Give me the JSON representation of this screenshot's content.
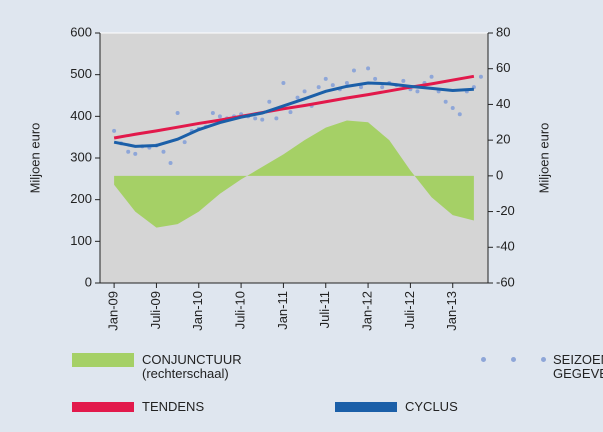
{
  "chart_data": {
    "type": "line",
    "ylabel": "Miljoen euro",
    "y2label": "Miljoen euro",
    "xlim": [
      "2008-11",
      "2013-06"
    ],
    "xticks": [
      {
        "value": "2009-01",
        "label": "Jan-09"
      },
      {
        "value": "2009-07",
        "label": "Juli-09"
      },
      {
        "value": "2010-01",
        "label": "Jan-10"
      },
      {
        "value": "2010-07",
        "label": "Juli-10"
      },
      {
        "value": "2011-01",
        "label": "Jan-11"
      },
      {
        "value": "2011-07",
        "label": "Juli-11"
      },
      {
        "value": "2012-01",
        "label": "Jan-12"
      },
      {
        "value": "2012-07",
        "label": "Juli-12"
      },
      {
        "value": "2013-01",
        "label": "Jan-13"
      }
    ],
    "ylim": [
      0,
      600
    ],
    "yticks": [
      0,
      100,
      200,
      300,
      400,
      500,
      600
    ],
    "y2lim": [
      -60,
      80
    ],
    "y2ticks": [
      -60,
      -40,
      -20,
      0,
      20,
      40,
      60,
      80
    ],
    "series": [
      {
        "name": "CONJUNCTUUR\n(rechterschaal)",
        "type": "area",
        "axis": "y2",
        "color": "#a5d066",
        "x": [
          "2009-01",
          "2009-04",
          "2009-07",
          "2009-10",
          "2010-01",
          "2010-04",
          "2010-07",
          "2010-10",
          "2011-01",
          "2011-04",
          "2011-07",
          "2011-10",
          "2012-01",
          "2012-04",
          "2012-07",
          "2012-10",
          "2013-01",
          "2013-04"
        ],
        "values": [
          -5,
          -20,
          -29,
          -27,
          -20,
          -10,
          -2,
          5,
          12,
          20,
          27,
          31,
          30,
          20,
          3,
          -12,
          -22,
          -25
        ]
      },
      {
        "name": "SEIZOENGEZUIVERDE\nGEGEVENS",
        "type": "scatter",
        "color": "#8ea6d8",
        "x": [
          "2009-01",
          "2009-02",
          "2009-03",
          "2009-04",
          "2009-05",
          "2009-06",
          "2009-07",
          "2009-08",
          "2009-09",
          "2009-10",
          "2009-11",
          "2009-12",
          "2010-01",
          "2010-02",
          "2010-03",
          "2010-04",
          "2010-05",
          "2010-06",
          "2010-07",
          "2010-08",
          "2010-09",
          "2010-10",
          "2010-11",
          "2010-12",
          "2011-01",
          "2011-02",
          "2011-03",
          "2011-04",
          "2011-05",
          "2011-06",
          "2011-07",
          "2011-08",
          "2011-09",
          "2011-10",
          "2011-11",
          "2011-12",
          "2012-01",
          "2012-02",
          "2012-03",
          "2012-04",
          "2012-05",
          "2012-06",
          "2012-07",
          "2012-08",
          "2012-09",
          "2012-10",
          "2012-11",
          "2012-12",
          "2013-01",
          "2013-02",
          "2013-03",
          "2013-04",
          "2013-05"
        ],
        "values": [
          365,
          335,
          315,
          310,
          328,
          325,
          330,
          315,
          288,
          408,
          338,
          365,
          370,
          375,
          408,
          400,
          395,
          400,
          405,
          400,
          395,
          392,
          435,
          395,
          480,
          410,
          445,
          460,
          425,
          470,
          490,
          475,
          465,
          480,
          510,
          470,
          515,
          490,
          470,
          480,
          475,
          485,
          465,
          460,
          480,
          495,
          460,
          435,
          420,
          405,
          460,
          470,
          495
        ]
      },
      {
        "name": "TENDENS",
        "type": "line",
        "color": "#e2194b",
        "x": [
          "2009-01",
          "2009-04",
          "2009-07",
          "2009-10",
          "2010-01",
          "2010-04",
          "2010-07",
          "2010-10",
          "2011-01",
          "2011-04",
          "2011-07",
          "2011-10",
          "2012-01",
          "2012-04",
          "2012-07",
          "2012-10",
          "2013-01",
          "2013-04"
        ],
        "values": [
          348,
          357,
          365,
          374,
          383,
          391,
          400,
          409,
          418,
          426,
          435,
          444,
          452,
          461,
          470,
          478,
          487,
          496
        ]
      },
      {
        "name": "CYCLUS",
        "type": "line",
        "color": "#1b5fa8",
        "x": [
          "2009-01",
          "2009-04",
          "2009-07",
          "2009-10",
          "2010-01",
          "2010-04",
          "2010-07",
          "2010-10",
          "2011-01",
          "2011-04",
          "2011-07",
          "2011-10",
          "2012-01",
          "2012-04",
          "2012-07",
          "2012-10",
          "2013-01",
          "2013-04"
        ],
        "values": [
          338,
          328,
          330,
          345,
          368,
          385,
          398,
          408,
          425,
          442,
          460,
          472,
          480,
          478,
          472,
          467,
          462,
          465
        ]
      }
    ]
  }
}
